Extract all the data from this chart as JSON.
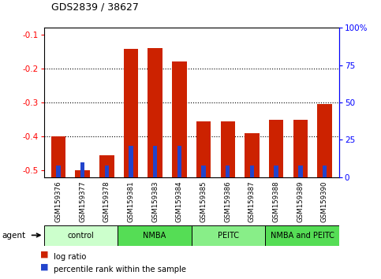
{
  "title": "GDS2839 / 38627",
  "samples": [
    "GSM159376",
    "GSM159377",
    "GSM159378",
    "GSM159381",
    "GSM159383",
    "GSM159384",
    "GSM159385",
    "GSM159386",
    "GSM159387",
    "GSM159388",
    "GSM159389",
    "GSM159390"
  ],
  "log_ratio": [
    -0.4,
    -0.5,
    -0.455,
    -0.142,
    -0.14,
    -0.178,
    -0.355,
    -0.355,
    -0.39,
    -0.352,
    -0.352,
    -0.305
  ],
  "percentile_rank_pct": [
    8,
    10,
    8,
    21,
    21,
    21,
    8,
    8,
    8,
    8,
    8,
    8
  ],
  "groups": [
    {
      "label": "control",
      "start": 0,
      "end": 3,
      "color": "#ccffcc"
    },
    {
      "label": "NMBA",
      "start": 3,
      "end": 6,
      "color": "#55dd55"
    },
    {
      "label": "PEITC",
      "start": 6,
      "end": 9,
      "color": "#88ee88"
    },
    {
      "label": "NMBA and PEITC",
      "start": 9,
      "end": 12,
      "color": "#55dd55"
    }
  ],
  "ylim_left": [
    -0.52,
    -0.08
  ],
  "ylim_right": [
    0,
    100
  ],
  "yticks_left": [
    -0.5,
    -0.4,
    -0.3,
    -0.2,
    -0.1
  ],
  "yticks_right": [
    0,
    25,
    50,
    75,
    100
  ],
  "bar_color_red": "#cc2200",
  "bar_color_blue": "#2244cc",
  "plot_bg_color": "#ffffff",
  "tick_area_bg": "#cccccc",
  "agent_label": "agent",
  "legend_red": "log ratio",
  "legend_blue": "percentile rank within the sample"
}
